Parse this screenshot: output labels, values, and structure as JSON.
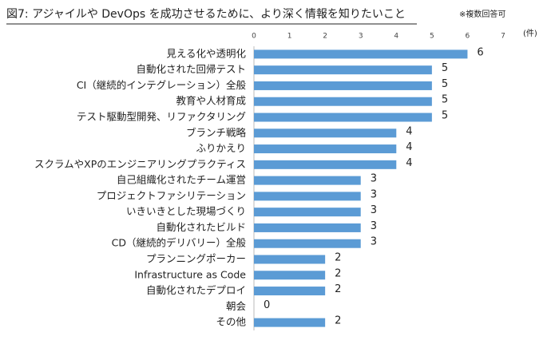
{
  "chart_data": {
    "type": "bar",
    "orientation": "horizontal",
    "title": "図7: アジャイルや DevOps を成功させるために、より深く情報を知りたいこと",
    "note": "※複数回答可",
    "unit": "(件)",
    "categories": [
      "見える化や透明化",
      "自動化された回帰テスト",
      "CI（継続的インテグレーション）全般",
      "教育や人材育成",
      "テスト駆動型開発、リファクタリング",
      "ブランチ戦略",
      "ふりかえり",
      "スクラムやXPのエンジニアリングプラクティス",
      "自己組織化されたチーム運営",
      "プロジェクトファシリテーション",
      "いきいきとした現場づくり",
      "自動化されたビルド",
      "CD（継続的デリバリー）全般",
      "プランニングポーカー",
      "Infrastructure as Code",
      "自動化されたデプロイ",
      "朝会",
      "その他"
    ],
    "values": [
      6,
      5,
      5,
      5,
      5,
      4,
      4,
      4,
      3,
      3,
      3,
      3,
      3,
      2,
      2,
      2,
      0,
      2
    ],
    "color": "#5b9bd5",
    "xlim": [
      0,
      7
    ],
    "xticks": [
      0,
      1,
      2,
      3,
      4,
      5,
      6,
      7
    ]
  }
}
